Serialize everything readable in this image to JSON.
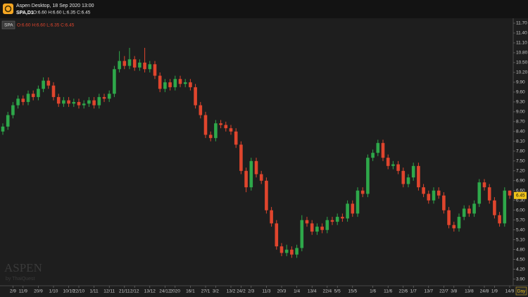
{
  "header": {
    "title": "Aspen Desktop, 18 Sep 2020 13:00",
    "symbol": "SPA,D1",
    "quote": "O:6.60 H:6.60 L:6.35 C:6.45"
  },
  "watermark": {
    "brand": "ASPEN",
    "by": "by ThaiQuest"
  },
  "chart_data": {
    "type": "candlestick",
    "symbol": "SPA",
    "ohlc_label": "O:6.60 H:6.60 L:6.35 C:6.45",
    "period_label": "Day",
    "up_color": "#2ea84a",
    "down_color": "#e0452d",
    "open": [
      8.4,
      8.55,
      8.9,
      9.2,
      9.4,
      9.3,
      9.55,
      9.45,
      9.7,
      9.95,
      9.8,
      9.45,
      9.25,
      9.35,
      9.25,
      9.3,
      9.2,
      9.25,
      9.35,
      9.2,
      9.45,
      9.4,
      9.55,
      10.3,
      10.55,
      10.4,
      10.6,
      10.35,
      10.5,
      10.3,
      10.45,
      10.1,
      9.7,
      9.9,
      9.75,
      10.0,
      9.85,
      9.9,
      9.75,
      9.2,
      8.9,
      8.3,
      8.2,
      8.65,
      8.6,
      8.5,
      8.4,
      8.0,
      7.2,
      6.7,
      7.5,
      7.1,
      6.9,
      6.0,
      5.6,
      4.9,
      4.7,
      4.8,
      4.65,
      4.85,
      5.7,
      5.6,
      5.35,
      5.5,
      5.4,
      5.7,
      5.65,
      5.8,
      5.75,
      6.2,
      5.9,
      6.6,
      6.5,
      7.6,
      7.75,
      8.05,
      7.6,
      7.35,
      7.4,
      7.2,
      6.8,
      7.0,
      7.35,
      6.7,
      6.5,
      6.3,
      6.6,
      6.45,
      6.0,
      5.55,
      5.45,
      5.8,
      6.05,
      5.9,
      6.2,
      6.85,
      6.7,
      6.3,
      5.85,
      5.6,
      6.6
    ],
    "high": [
      8.65,
      9.0,
      9.3,
      9.5,
      9.5,
      9.65,
      9.65,
      9.8,
      10.05,
      10.05,
      9.9,
      9.55,
      9.45,
      9.45,
      9.4,
      9.4,
      9.35,
      9.45,
      9.45,
      9.55,
      9.55,
      9.65,
      10.4,
      10.85,
      10.7,
      10.95,
      10.7,
      10.6,
      10.95,
      10.55,
      10.55,
      10.2,
      10.0,
      10.0,
      10.1,
      10.1,
      10.0,
      10.0,
      9.85,
      9.3,
      9.0,
      8.4,
      8.75,
      8.75,
      8.7,
      8.6,
      8.5,
      8.1,
      7.3,
      7.6,
      7.6,
      7.2,
      7.0,
      6.1,
      5.7,
      5.0,
      4.95,
      4.9,
      4.95,
      5.85,
      5.8,
      5.7,
      5.6,
      5.6,
      5.8,
      5.8,
      5.9,
      5.9,
      6.3,
      6.3,
      6.7,
      6.7,
      7.7,
      7.85,
      8.15,
      8.15,
      7.7,
      7.5,
      7.5,
      7.3,
      7.1,
      7.45,
      7.45,
      6.8,
      6.6,
      6.7,
      6.7,
      6.55,
      6.1,
      5.65,
      5.9,
      6.15,
      6.15,
      6.3,
      6.95,
      6.95,
      6.8,
      6.4,
      5.95,
      6.7,
      6.6
    ],
    "low": [
      8.3,
      8.45,
      8.8,
      9.1,
      9.2,
      9.2,
      9.35,
      9.35,
      9.6,
      9.7,
      9.35,
      9.15,
      9.15,
      9.15,
      9.15,
      9.1,
      9.1,
      9.15,
      9.1,
      9.1,
      9.3,
      9.3,
      9.45,
      10.2,
      10.3,
      10.3,
      10.25,
      10.25,
      10.2,
      10.2,
      10.0,
      9.6,
      9.6,
      9.65,
      9.65,
      9.75,
      9.75,
      9.65,
      9.1,
      8.8,
      8.2,
      8.1,
      8.1,
      8.5,
      8.4,
      8.3,
      7.9,
      7.1,
      6.55,
      6.6,
      7.0,
      6.8,
      5.9,
      5.5,
      4.8,
      4.6,
      4.6,
      4.55,
      4.55,
      4.75,
      5.5,
      5.25,
      5.25,
      5.3,
      5.3,
      5.55,
      5.55,
      5.65,
      5.65,
      5.8,
      5.8,
      6.4,
      6.4,
      7.5,
      7.65,
      7.5,
      7.25,
      7.25,
      7.1,
      6.7,
      6.7,
      6.9,
      6.6,
      6.4,
      6.2,
      6.2,
      6.35,
      5.9,
      5.45,
      5.35,
      5.35,
      5.7,
      5.8,
      5.8,
      6.1,
      6.6,
      6.2,
      5.75,
      5.5,
      5.5,
      6.35
    ],
    "close": [
      8.55,
      8.9,
      9.2,
      9.4,
      9.3,
      9.55,
      9.45,
      9.7,
      9.95,
      9.8,
      9.45,
      9.25,
      9.35,
      9.25,
      9.3,
      9.2,
      9.25,
      9.35,
      9.2,
      9.45,
      9.4,
      9.55,
      10.3,
      10.55,
      10.4,
      10.6,
      10.35,
      10.5,
      10.3,
      10.45,
      10.1,
      9.7,
      9.9,
      9.75,
      10.0,
      9.85,
      9.9,
      9.75,
      9.2,
      8.9,
      8.3,
      8.2,
      8.65,
      8.6,
      8.5,
      8.4,
      8.0,
      7.2,
      6.7,
      7.5,
      7.1,
      6.9,
      6.0,
      5.6,
      4.9,
      4.7,
      4.8,
      4.65,
      4.85,
      5.7,
      5.6,
      5.35,
      5.5,
      5.4,
      5.7,
      5.65,
      5.8,
      5.75,
      6.2,
      5.9,
      6.6,
      6.5,
      7.6,
      7.75,
      8.05,
      7.6,
      7.35,
      7.4,
      7.2,
      6.8,
      7.0,
      7.35,
      6.7,
      6.5,
      6.3,
      6.6,
      6.45,
      6.0,
      5.55,
      5.45,
      5.8,
      6.05,
      5.9,
      6.2,
      6.85,
      6.7,
      6.3,
      5.85,
      5.6,
      6.6,
      6.45
    ],
    "xticks": [
      {
        "value": 2,
        "label": "2/9"
      },
      {
        "value": 4,
        "label": "11/9"
      },
      {
        "value": 7,
        "label": "20/9"
      },
      {
        "value": 10,
        "label": "1/10"
      },
      {
        "value": 13,
        "label": "10/10"
      },
      {
        "value": 15,
        "label": "22/10"
      },
      {
        "value": 18,
        "label": "1/11"
      },
      {
        "value": 21,
        "label": "12/11"
      },
      {
        "value": 24,
        "label": "21/11"
      },
      {
        "value": 26,
        "label": "2/12"
      },
      {
        "value": 29,
        "label": "13/12"
      },
      {
        "value": 32,
        "label": "24/12"
      },
      {
        "value": 34,
        "label": "2020"
      },
      {
        "value": 37,
        "label": "16/1"
      },
      {
        "value": 40,
        "label": "27/1"
      },
      {
        "value": 42,
        "label": "3/2"
      },
      {
        "value": 45,
        "label": "13/2"
      },
      {
        "value": 47,
        "label": "24/2"
      },
      {
        "value": 49,
        "label": "2/3"
      },
      {
        "value": 52,
        "label": "11/3"
      },
      {
        "value": 55,
        "label": "20/3"
      },
      {
        "value": 58,
        "label": "1/4"
      },
      {
        "value": 61,
        "label": "13/4"
      },
      {
        "value": 64,
        "label": "22/4"
      },
      {
        "value": 66,
        "label": "5/5"
      },
      {
        "value": 69,
        "label": "15/5"
      },
      {
        "value": 73,
        "label": "1/6"
      },
      {
        "value": 76,
        "label": "11/6"
      },
      {
        "value": 79,
        "label": "22/6"
      },
      {
        "value": 81,
        "label": "1/7"
      },
      {
        "value": 84,
        "label": "13/7"
      },
      {
        "value": 87,
        "label": "22/7"
      },
      {
        "value": 89,
        "label": "3/8"
      },
      {
        "value": 92,
        "label": "13/8"
      },
      {
        "value": 95,
        "label": "24/8"
      },
      {
        "value": 97,
        "label": "1/9"
      },
      {
        "value": 100,
        "label": "14/9"
      }
    ],
    "ylim": [
      3.7,
      11.85
    ],
    "yticks": [
      {
        "value": 11.7,
        "label": "11.70"
      },
      {
        "value": 11.4,
        "label": "11.40"
      },
      {
        "value": 11.1,
        "label": "11.10"
      },
      {
        "value": 10.8,
        "label": "10.80"
      },
      {
        "value": 10.5,
        "label": "10.50"
      },
      {
        "value": 10.2,
        "label": "10.20"
      },
      {
        "value": 9.9,
        "label": "9.90"
      },
      {
        "value": 9.6,
        "label": "9.60"
      },
      {
        "value": 9.3,
        "label": "9.30"
      },
      {
        "value": 9.0,
        "label": "9.00"
      },
      {
        "value": 8.7,
        "label": "8.70"
      },
      {
        "value": 8.4,
        "label": "8.40"
      },
      {
        "value": 8.1,
        "label": "8.10"
      },
      {
        "value": 7.8,
        "label": "7.80"
      },
      {
        "value": 7.5,
        "label": "7.50"
      },
      {
        "value": 7.2,
        "label": "7.20"
      },
      {
        "value": 6.9,
        "label": "6.90"
      },
      {
        "value": 6.6,
        "label": "6.60"
      },
      {
        "value": 6.3,
        "label": "6.30"
      },
      {
        "value": 6.0,
        "label": "6.00"
      },
      {
        "value": 5.7,
        "label": "5.70"
      },
      {
        "value": 5.4,
        "label": "5.40"
      },
      {
        "value": 5.1,
        "label": "5.10"
      },
      {
        "value": 4.8,
        "label": "4.80"
      },
      {
        "value": 4.5,
        "label": "4.50"
      },
      {
        "value": 4.2,
        "label": "4.20"
      },
      {
        "value": 3.9,
        "label": "3.90"
      }
    ]
  }
}
